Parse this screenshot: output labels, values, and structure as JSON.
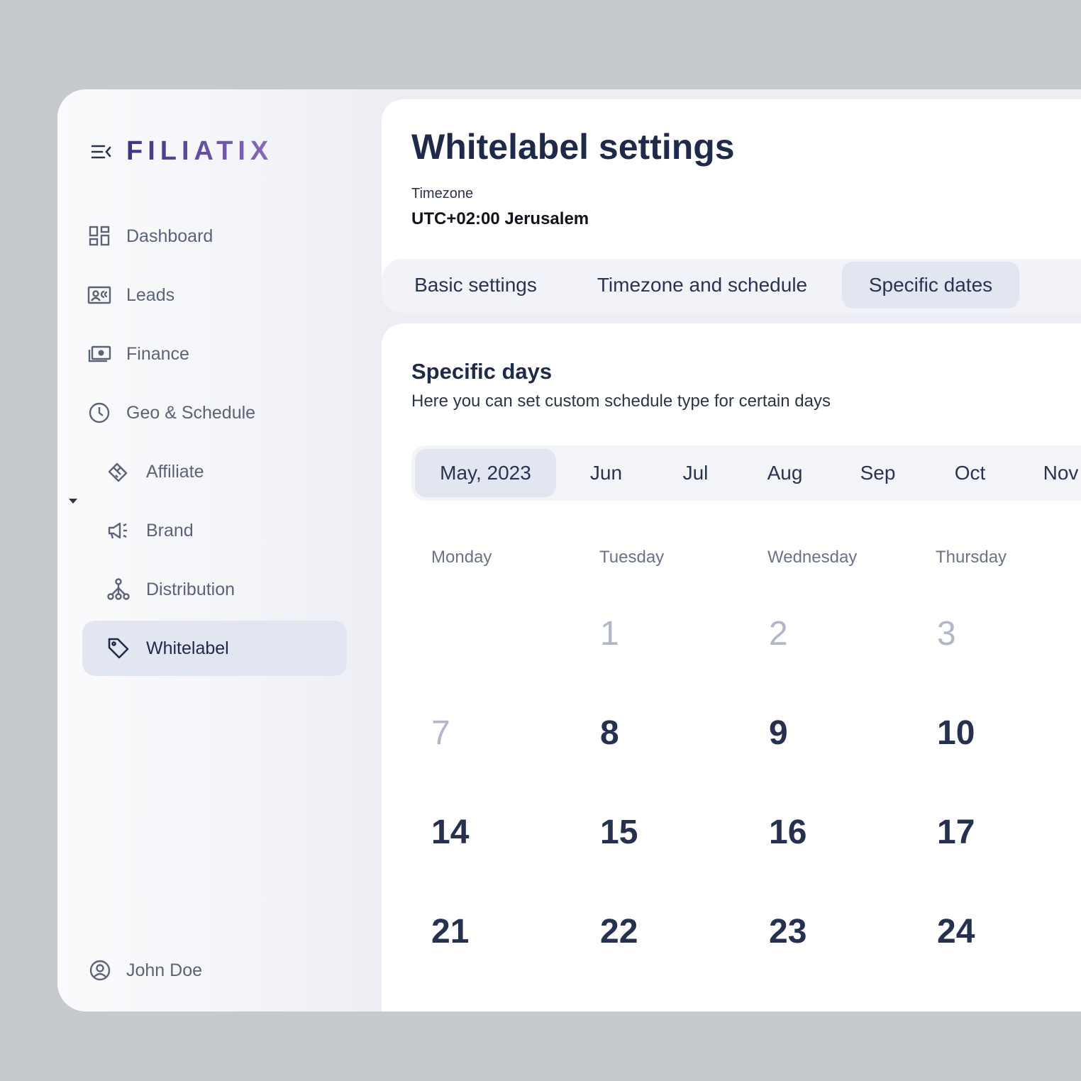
{
  "app": {
    "brand": "FILIATIX"
  },
  "sidebar": {
    "items": [
      {
        "label": "Dashboard",
        "icon": "dashboard-icon"
      },
      {
        "label": "Leads",
        "icon": "id-card-icon"
      },
      {
        "label": "Finance",
        "icon": "money-icon"
      },
      {
        "label": "Geo & Schedule",
        "icon": "clock-icon",
        "expanded": true
      },
      {
        "label": "Affiliate",
        "icon": "handshake-icon"
      },
      {
        "label": "Brand",
        "icon": "megaphone-icon"
      },
      {
        "label": "Distribution",
        "icon": "network-icon"
      },
      {
        "label": "Whitelabel",
        "icon": "tag-icon",
        "active": true
      }
    ],
    "user": {
      "name": "John Doe",
      "icon": "user-circle-icon"
    }
  },
  "header": {
    "title": "Whitelabel settings",
    "timezone_label": "Timezone",
    "timezone_value": "UTC+02:00 Jerusalem",
    "tabs": [
      {
        "label": "Basic settings"
      },
      {
        "label": "Timezone and schedule"
      },
      {
        "label": "Specific dates",
        "active": true
      }
    ]
  },
  "specific": {
    "title": "Specific days",
    "subtitle": "Here you can set custom schedule type for certain days",
    "months": [
      "May, 2023",
      "Jun",
      "Jul",
      "Aug",
      "Sep",
      "Oct",
      "Nov"
    ],
    "weekdays": [
      "Monday",
      "Tuesday",
      "Wednesday",
      "Thursday"
    ],
    "days": [
      [
        "",
        "1",
        "2",
        "3"
      ],
      [
        "7",
        "8",
        "9",
        "10"
      ],
      [
        "14",
        "15",
        "16",
        "17"
      ],
      [
        "21",
        "22",
        "23",
        "24"
      ]
    ]
  },
  "colors": {
    "accent": "#e1e6f1",
    "brand_start": "#3a3583",
    "brand_end": "#8a6cb8",
    "text_dark": "#1f2a4a"
  }
}
